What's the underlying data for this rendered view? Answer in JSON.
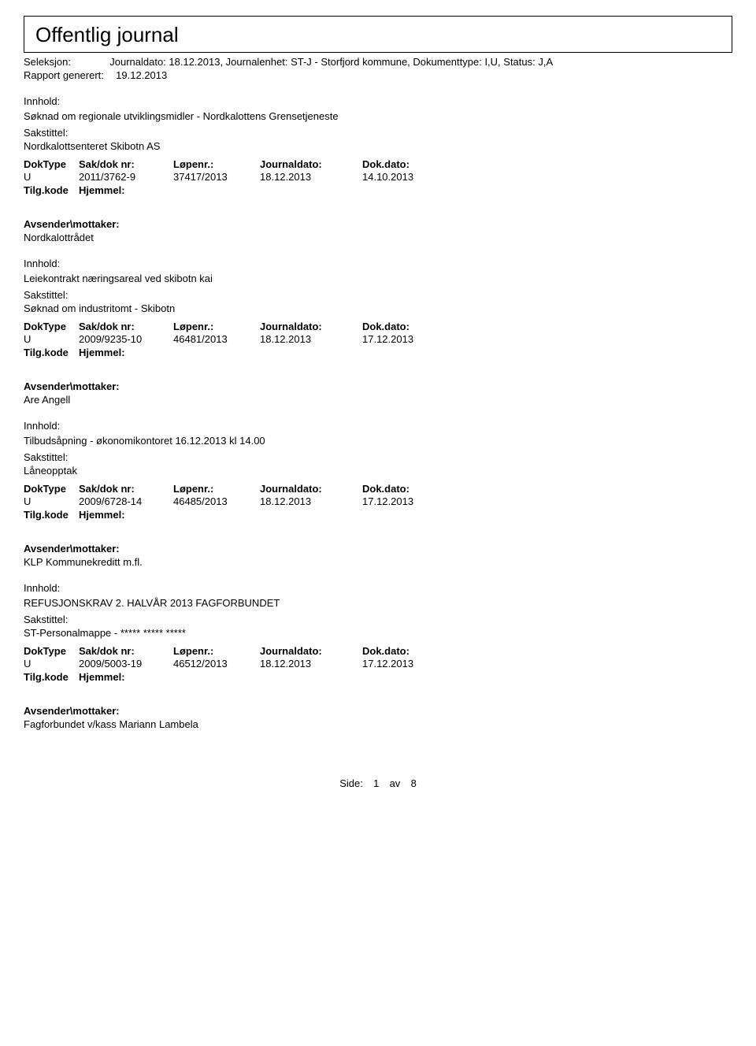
{
  "header": {
    "title": "Offentlig journal",
    "seleksjon_label": "Seleksjon:",
    "seleksjon_text": "Journaldato: 18.12.2013, Journalenhet: ST-J - Storfjord kommune, Dokumenttype: I,U, Status: J,A",
    "rapport_label": "Rapport generert:",
    "rapport_date": "19.12.2013"
  },
  "labels": {
    "innhold": "Innhold:",
    "sakstittel": "Sakstittel:",
    "doktype": "DokType",
    "sakdok": "Sak/dok nr:",
    "lopenr": "Løpenr.:",
    "journaldato": "Journaldato:",
    "dokdato": "Dok.dato:",
    "tilgkode": "Tilg.kode",
    "hjemmel": "Hjemmel:",
    "avsender": "Avsender\\mottaker:"
  },
  "entries": [
    {
      "innhold": "Søknad om regionale utviklingsmidler - Nordkalottens Grensetjeneste",
      "sakstittel": "Nordkalottsenteret Skibotn AS",
      "doktype": "U",
      "sakdok": "2011/3762-9",
      "lopenr": "37417/2013",
      "jdato": "18.12.2013",
      "dokdato": "14.10.2013",
      "avsender": "Nordkalottrådet"
    },
    {
      "innhold": "Leiekontrakt næringsareal ved skibotn kai",
      "sakstittel": "Søknad om industritomt - Skibotn",
      "doktype": "U",
      "sakdok": "2009/9235-10",
      "lopenr": "46481/2013",
      "jdato": "18.12.2013",
      "dokdato": "17.12.2013",
      "avsender": "Are Angell"
    },
    {
      "innhold": "Tilbudsåpning - økonomikontoret 16.12.2013 kl 14.00",
      "sakstittel": "Låneopptak",
      "doktype": "U",
      "sakdok": "2009/6728-14",
      "lopenr": "46485/2013",
      "jdato": "18.12.2013",
      "dokdato": "17.12.2013",
      "avsender": "KLP Kommunekreditt m.fl."
    },
    {
      "innhold": "REFUSJONSKRAV 2. HALVÅR 2013 FAGFORBUNDET",
      "sakstittel": "ST-Personalmappe - ***** ***** *****",
      "doktype": "U",
      "sakdok": "2009/5003-19",
      "lopenr": "46512/2013",
      "jdato": "18.12.2013",
      "dokdato": "17.12.2013",
      "avsender": "Fagforbundet v/kass Mariann Lambela"
    }
  ],
  "footer": {
    "side_label": "Side:",
    "page": "1",
    "av_label": "av",
    "total": "8"
  }
}
